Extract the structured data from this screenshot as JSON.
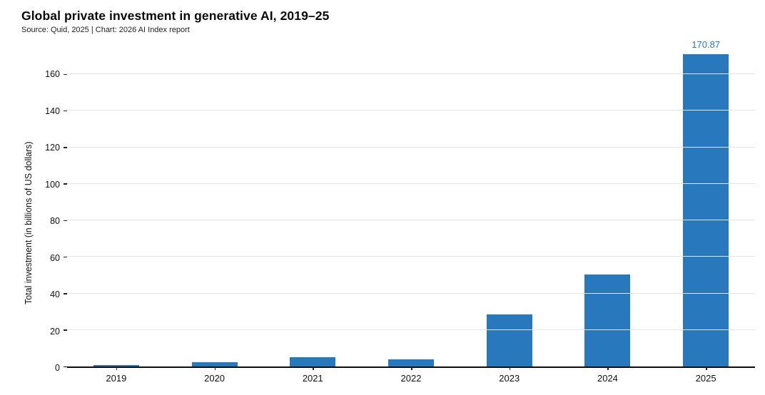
{
  "chart_data": {
    "type": "bar",
    "title": "Global private investment in generative AI, 2019–25",
    "source": "Source: Quid, 2025 | Chart: 2026 AI Index report",
    "ylabel": "Total investment (in billions of US dollars)",
    "xlabel": "",
    "categories": [
      "2019",
      "2020",
      "2021",
      "2022",
      "2023",
      "2024",
      "2025"
    ],
    "values": [
      0.9,
      2.3,
      5.2,
      4.0,
      28.5,
      50.5,
      170.87
    ],
    "value_labels": [
      null,
      null,
      null,
      null,
      null,
      null,
      "170.87"
    ],
    "yticks": [
      0,
      20,
      40,
      60,
      80,
      100,
      120,
      140,
      160
    ],
    "ylim": [
      0,
      178
    ],
    "grid": true,
    "legend": "none",
    "bar_color": "#2878be",
    "value_label_color": "#2878be",
    "axis_color": "#0d0d0d",
    "gridline_color": "#e3e3e3"
  }
}
